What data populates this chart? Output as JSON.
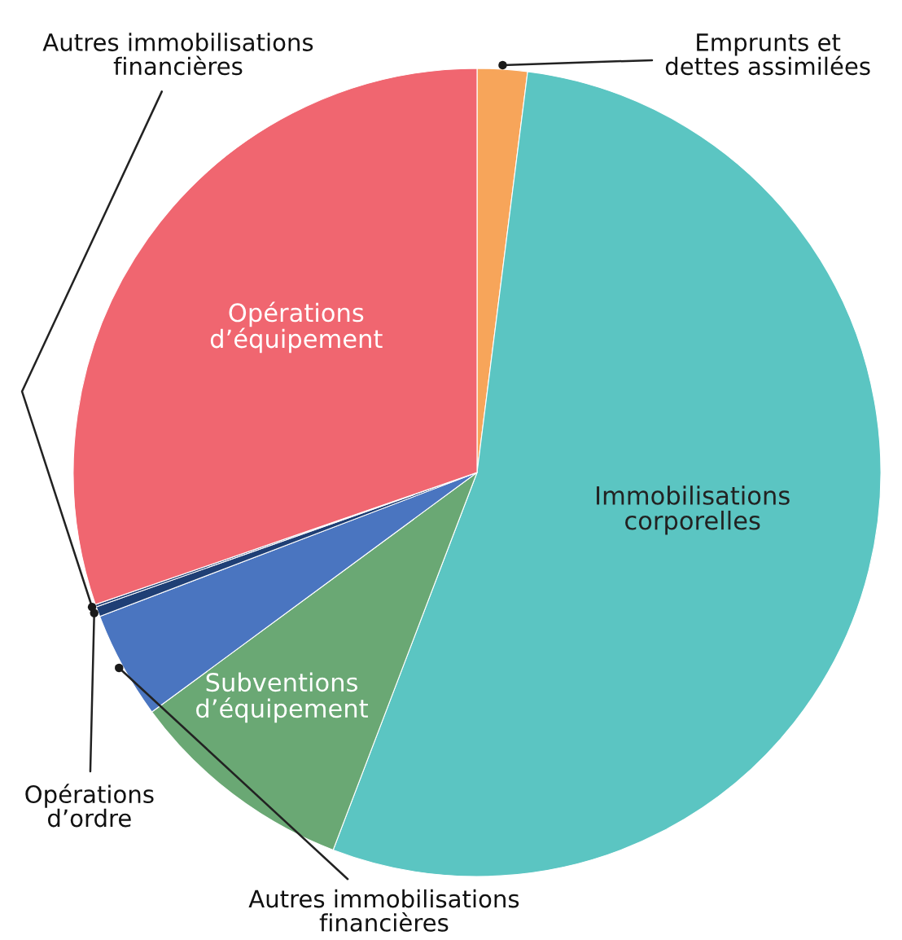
{
  "chart_data": {
    "type": "pie",
    "categories": [
      "Emprunts et\ndettes assimilées",
      "Immobilisations\ncorporelles",
      "Subventions\nd’équipement",
      "Autres immobilisations\nfinancières",
      "Opérations\nd’ordre",
      "Autres immobilisations\nfinancières",
      "Opérations\nd’équipement"
    ],
    "values": [
      2.0,
      53.8,
      9.1,
      4.3,
      0.4,
      0.1,
      30.3
    ],
    "colors": [
      "#f7a55a",
      "#5bc5c2",
      "#6aa874",
      "#4a75c0",
      "#1f3f75",
      "#1f3f75",
      "#f06670"
    ]
  }
}
